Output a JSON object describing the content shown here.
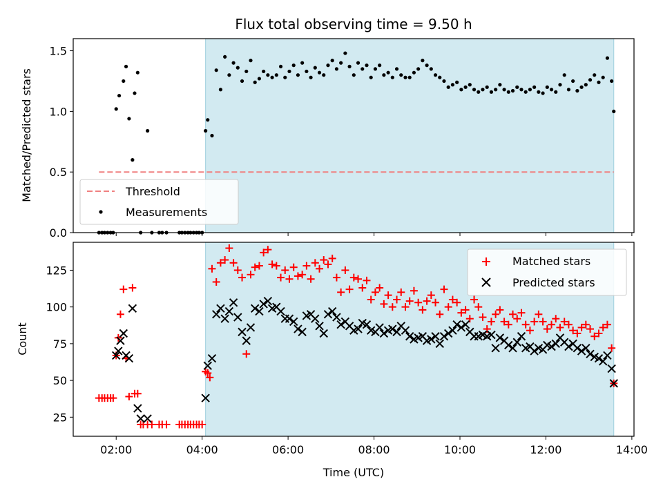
{
  "title": "Flux total observing time = 9.50 h",
  "chart_data": [
    {
      "type": "scatter",
      "title": "Flux total observing time = 9.50 h",
      "xlabel": "",
      "ylabel": "Matched/Predicted stars",
      "xlim": [
        1.0,
        14.05
      ],
      "ylim": [
        0,
        1.6
      ],
      "yticks": [
        0.0,
        0.5,
        1.0,
        1.5
      ],
      "ytick_labels": [
        "0.0",
        "0.5",
        "1.0",
        "1.5"
      ],
      "xticks": [
        2,
        4,
        6,
        8,
        10,
        12,
        14
      ],
      "observing_window": [
        4.08,
        13.58
      ],
      "legend_position": "lower-left",
      "legend": [
        "Threshold",
        "Measurements"
      ],
      "threshold": {
        "name": "Threshold",
        "value": 0.5,
        "x_range": [
          1.6,
          13.58
        ],
        "color": "#f08080"
      },
      "series": [
        {
          "name": "Measurements",
          "marker": "dot",
          "color": "#000000",
          "x": [
            1.6,
            1.67,
            1.73,
            1.8,
            1.87,
            1.93,
            2.0,
            2.07,
            2.17,
            2.23,
            2.3,
            2.38,
            2.43,
            2.5,
            2.57,
            2.73,
            2.83,
            3.0,
            3.07,
            3.17,
            3.47,
            3.53,
            3.6,
            3.67,
            3.73,
            3.8,
            3.87,
            3.93,
            4.0,
            4.08,
            4.13,
            4.23,
            4.33,
            4.43,
            4.53,
            4.63,
            4.73,
            4.83,
            4.93,
            5.03,
            5.13,
            5.23,
            5.33,
            5.43,
            5.53,
            5.63,
            5.73,
            5.83,
            5.93,
            6.03,
            6.13,
            6.23,
            6.33,
            6.43,
            6.53,
            6.63,
            6.73,
            6.83,
            6.93,
            7.03,
            7.13,
            7.23,
            7.33,
            7.43,
            7.53,
            7.63,
            7.73,
            7.83,
            7.93,
            8.03,
            8.13,
            8.23,
            8.33,
            8.43,
            8.53,
            8.63,
            8.73,
            8.83,
            8.93,
            9.03,
            9.13,
            9.23,
            9.33,
            9.43,
            9.53,
            9.63,
            9.73,
            9.83,
            9.93,
            10.03,
            10.13,
            10.23,
            10.33,
            10.43,
            10.53,
            10.63,
            10.73,
            10.83,
            10.93,
            11.03,
            11.13,
            11.23,
            11.33,
            11.43,
            11.53,
            11.63,
            11.73,
            11.83,
            11.93,
            12.03,
            12.13,
            12.23,
            12.33,
            12.43,
            12.53,
            12.63,
            12.73,
            12.83,
            12.93,
            13.03,
            13.13,
            13.23,
            13.33,
            13.43,
            13.53,
            13.58
          ],
          "y": [
            0,
            0,
            0,
            0,
            0,
            0,
            1.02,
            1.13,
            1.25,
            1.37,
            0.94,
            0.6,
            1.15,
            1.32,
            0,
            0.84,
            0,
            0,
            0,
            0,
            0,
            0,
            0,
            0,
            0,
            0,
            0,
            0,
            0,
            0.84,
            0.93,
            0.8,
            1.34,
            1.18,
            1.45,
            1.3,
            1.4,
            1.36,
            1.25,
            1.33,
            1.42,
            1.24,
            1.27,
            1.33,
            1.3,
            1.28,
            1.3,
            1.37,
            1.28,
            1.33,
            1.38,
            1.3,
            1.4,
            1.33,
            1.28,
            1.36,
            1.32,
            1.3,
            1.38,
            1.42,
            1.35,
            1.4,
            1.48,
            1.37,
            1.3,
            1.4,
            1.35,
            1.38,
            1.28,
            1.35,
            1.38,
            1.3,
            1.32,
            1.28,
            1.35,
            1.3,
            1.28,
            1.28,
            1.32,
            1.35,
            1.42,
            1.38,
            1.35,
            1.3,
            1.28,
            1.25,
            1.2,
            1.22,
            1.24,
            1.18,
            1.2,
            1.22,
            1.18,
            1.16,
            1.18,
            1.2,
            1.16,
            1.18,
            1.22,
            1.18,
            1.16,
            1.17,
            1.2,
            1.18,
            1.16,
            1.18,
            1.2,
            1.16,
            1.15,
            1.2,
            1.18,
            1.16,
            1.22,
            1.3,
            1.18,
            1.25,
            1.17,
            1.2,
            1.22,
            1.26,
            1.3,
            1.24,
            1.28,
            1.44,
            1.25,
            1.0
          ]
        }
      ]
    },
    {
      "type": "scatter",
      "title": "",
      "xlabel": "Time (UTC)",
      "ylabel": "Count",
      "xlim": [
        1.0,
        14.05
      ],
      "ylim": [
        12,
        144
      ],
      "yticks": [
        25,
        50,
        75,
        100,
        125
      ],
      "ytick_labels": [
        "25",
        "50",
        "75",
        "100",
        "125"
      ],
      "xticks": [
        2,
        4,
        6,
        8,
        10,
        12,
        14
      ],
      "xtick_labels": [
        "02:00",
        "04:00",
        "06:00",
        "08:00",
        "10:00",
        "12:00",
        "14:00"
      ],
      "observing_window": [
        4.08,
        13.58
      ],
      "legend_position": "top-right",
      "legend": [
        "Matched stars",
        "Predicted stars"
      ],
      "series": [
        {
          "name": "Matched stars",
          "marker": "plus",
          "color": "#ff0000",
          "x": [
            1.6,
            1.67,
            1.73,
            1.8,
            1.87,
            1.93,
            2.0,
            2.05,
            2.1,
            2.17,
            2.23,
            2.3,
            2.38,
            2.43,
            2.5,
            2.57,
            2.63,
            2.73,
            2.83,
            3.0,
            3.07,
            3.17,
            3.47,
            3.53,
            3.6,
            3.67,
            3.73,
            3.8,
            3.87,
            3.93,
            4.0,
            4.08,
            4.13,
            4.18,
            4.23,
            4.33,
            4.43,
            4.53,
            4.63,
            4.73,
            4.83,
            4.93,
            5.03,
            5.13,
            5.23,
            5.33,
            5.43,
            5.53,
            5.63,
            5.73,
            5.83,
            5.93,
            6.03,
            6.13,
            6.23,
            6.33,
            6.43,
            6.53,
            6.63,
            6.73,
            6.83,
            6.93,
            7.03,
            7.13,
            7.23,
            7.33,
            7.43,
            7.53,
            7.63,
            7.73,
            7.83,
            7.93,
            8.03,
            8.13,
            8.23,
            8.33,
            8.43,
            8.53,
            8.63,
            8.73,
            8.83,
            8.93,
            9.03,
            9.13,
            9.23,
            9.33,
            9.43,
            9.53,
            9.63,
            9.73,
            9.83,
            9.93,
            10.03,
            10.13,
            10.23,
            10.33,
            10.43,
            10.53,
            10.63,
            10.73,
            10.83,
            10.93,
            11.03,
            11.13,
            11.23,
            11.33,
            11.43,
            11.53,
            11.63,
            11.73,
            11.83,
            11.93,
            12.03,
            12.13,
            12.23,
            12.33,
            12.43,
            12.53,
            12.63,
            12.73,
            12.83,
            12.93,
            13.03,
            13.13,
            13.23,
            13.33,
            13.43,
            13.53,
            13.58
          ],
          "y": [
            38,
            38,
            38,
            38,
            38,
            38,
            67,
            79,
            95,
            112,
            65,
            39,
            113,
            41,
            41,
            20,
            20,
            20,
            20,
            20,
            20,
            20,
            20,
            20,
            20,
            20,
            20,
            20,
            20,
            20,
            20,
            56,
            55,
            52,
            126,
            117,
            130,
            132,
            140,
            130,
            125,
            120,
            68,
            122,
            127,
            128,
            137,
            139,
            129,
            128,
            120,
            125,
            119,
            127,
            121,
            122,
            128,
            119,
            130,
            126,
            132,
            129,
            133,
            120,
            110,
            125,
            112,
            120,
            119,
            113,
            118,
            105,
            110,
            113,
            102,
            108,
            100,
            105,
            110,
            100,
            104,
            111,
            103,
            98,
            104,
            108,
            103,
            95,
            112,
            100,
            105,
            103,
            96,
            98,
            92,
            105,
            100,
            93,
            85,
            90,
            95,
            98,
            90,
            88,
            95,
            92,
            96,
            88,
            84,
            90,
            95,
            90,
            85,
            88,
            92,
            86,
            90,
            88,
            84,
            82,
            86,
            88,
            85,
            80,
            82,
            86,
            88,
            72,
            48
          ],
          "annotations": []
        },
        {
          "name": "Predicted stars",
          "marker": "x",
          "color": "#000000",
          "x": [
            2.0,
            2.05,
            2.1,
            2.17,
            2.23,
            2.3,
            2.38,
            2.5,
            2.57,
            2.73,
            4.08,
            4.13,
            4.23,
            4.33,
            4.43,
            4.53,
            4.63,
            4.73,
            4.83,
            4.93,
            5.03,
            5.13,
            5.23,
            5.33,
            5.43,
            5.53,
            5.63,
            5.73,
            5.83,
            5.93,
            6.03,
            6.13,
            6.23,
            6.33,
            6.43,
            6.53,
            6.63,
            6.73,
            6.83,
            6.93,
            7.03,
            7.13,
            7.23,
            7.33,
            7.43,
            7.53,
            7.63,
            7.73,
            7.83,
            7.93,
            8.03,
            8.13,
            8.23,
            8.33,
            8.43,
            8.53,
            8.63,
            8.73,
            8.83,
            8.93,
            9.03,
            9.13,
            9.23,
            9.33,
            9.43,
            9.53,
            9.63,
            9.73,
            9.83,
            9.93,
            10.03,
            10.13,
            10.23,
            10.33,
            10.43,
            10.53,
            10.63,
            10.73,
            10.83,
            10.93,
            11.03,
            11.13,
            11.23,
            11.33,
            11.43,
            11.53,
            11.63,
            11.73,
            11.83,
            11.93,
            12.03,
            12.13,
            12.23,
            12.33,
            12.43,
            12.53,
            12.63,
            12.73,
            12.83,
            12.93,
            13.03,
            13.13,
            13.23,
            13.33,
            13.43,
            13.53,
            13.58
          ],
          "y": [
            67,
            70,
            77,
            82,
            67,
            65,
            99,
            31,
            24,
            24,
            38,
            60,
            65,
            95,
            99,
            92,
            97,
            103,
            93,
            83,
            77,
            86,
            99,
            97,
            102,
            104,
            99,
            100,
            97,
            92,
            92,
            90,
            85,
            83,
            94,
            95,
            92,
            87,
            82,
            95,
            97,
            93,
            88,
            90,
            87,
            84,
            85,
            89,
            88,
            84,
            83,
            86,
            82,
            84,
            85,
            83,
            87,
            84,
            80,
            78,
            79,
            80,
            77,
            78,
            80,
            75,
            80,
            82,
            84,
            88,
            86,
            88,
            83,
            80,
            80,
            81,
            80,
            81,
            72,
            79,
            77,
            74,
            72,
            76,
            80,
            72,
            73,
            70,
            72,
            71,
            74,
            73,
            75,
            79,
            76,
            73,
            75,
            72,
            70,
            72,
            68,
            66,
            65,
            63,
            67,
            58,
            48
          ]
        }
      ]
    }
  ]
}
